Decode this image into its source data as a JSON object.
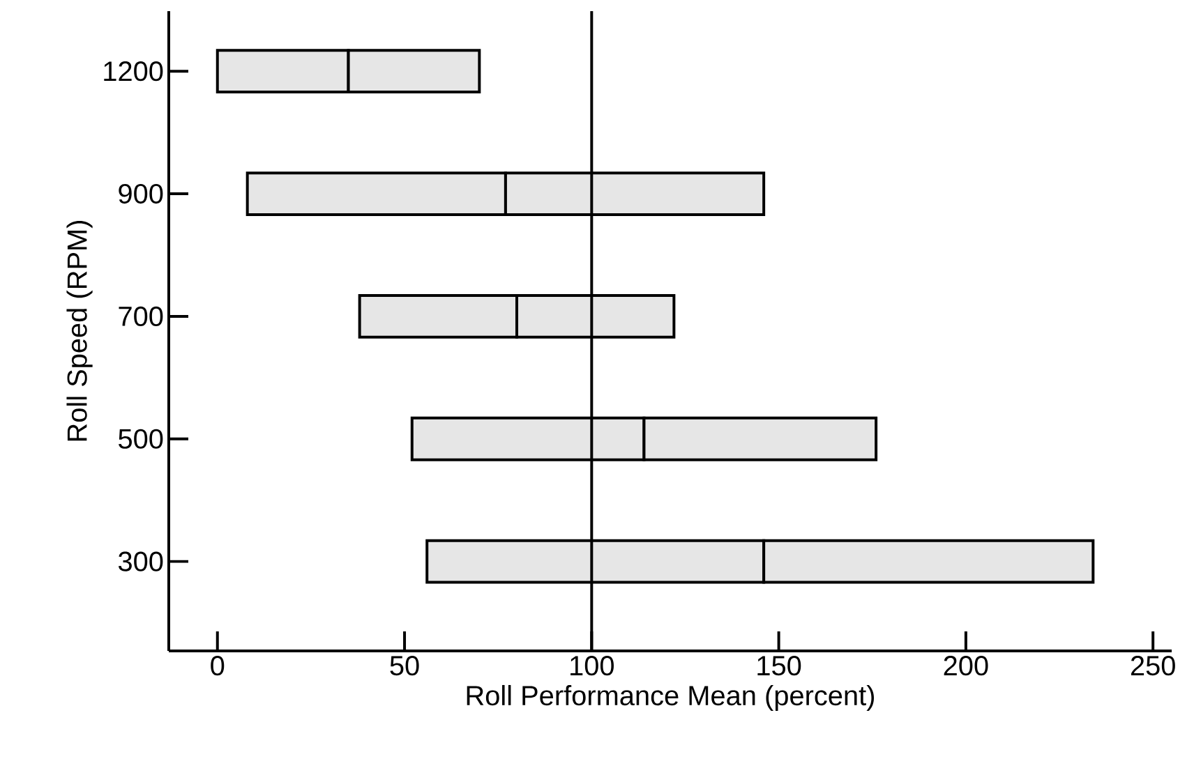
{
  "chart_data": {
    "type": "bar",
    "orientation": "horizontal",
    "xlabel": "Roll Performance Mean (percent)",
    "ylabel": "Roll Speed (RPM)",
    "categories": [
      "1200",
      "900",
      "700",
      "500",
      "300"
    ],
    "series": [
      {
        "color": "#e6e6e6",
        "base": [
          0,
          8,
          38,
          52,
          56
        ],
        "values": [
          35,
          69,
          42,
          62,
          90
        ]
      },
      {
        "color": "#e6e6e6",
        "base": [
          35,
          77,
          80,
          114,
          146
        ],
        "values": [
          35,
          69,
          42,
          62,
          88
        ]
      }
    ],
    "xlim": [
      -13,
      255
    ],
    "xticks": [
      0,
      50,
      100,
      150,
      200,
      250
    ],
    "ref_lines": [
      {
        "axis": "x",
        "value": 100
      }
    ]
  }
}
